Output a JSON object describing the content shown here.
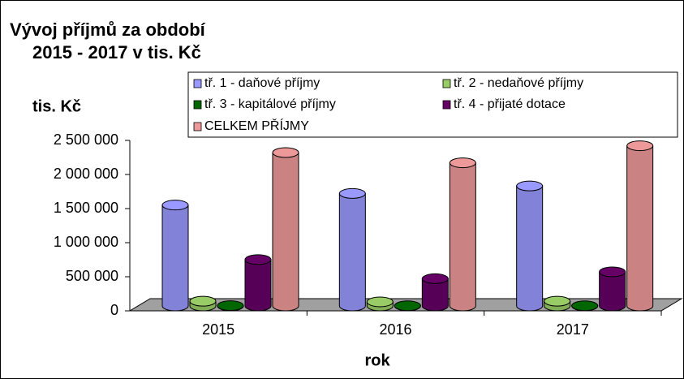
{
  "chart_data": {
    "type": "bar3d",
    "title": "Vývoj příjmů za období",
    "subtitle": "2015 - 2017  v tis. Kč",
    "y_label": "tis. Kč",
    "x_label": "rok",
    "categories": [
      "2015",
      "2016",
      "2017"
    ],
    "series": [
      {
        "name": "tř. 1 - daňové příjmy",
        "color": "#9999ff",
        "values": [
          1480000,
          1650000,
          1760000
        ]
      },
      {
        "name": "tř. 2 - nedaňové příjmy",
        "color": "#99cc66",
        "values": [
          70000,
          60000,
          70000
        ]
      },
      {
        "name": "tř. 3 - kapitálové příjmy",
        "color": "#006600",
        "values": [
          5000,
          3000,
          3000
        ]
      },
      {
        "name": "tř. 4 - přijaté dotace",
        "color": "#660066",
        "values": [
          680000,
          400000,
          500000
        ]
      },
      {
        "name": "CELKEM PŘÍJMY",
        "color": "#ee9999",
        "values": [
          2250000,
          2100000,
          2350000
        ]
      }
    ],
    "ylim": [
      0,
      2500000
    ],
    "yticks": [
      0,
      {
        "value": 500000,
        "label": "500 000"
      },
      {
        "value": 1000000,
        "label": "1 000 000"
      },
      {
        "value": 1500000,
        "label": "1 500 000"
      },
      {
        "value": 2000000,
        "label": "2 000 000"
      },
      {
        "value": 2500000,
        "label": "2 500 000"
      }
    ]
  }
}
